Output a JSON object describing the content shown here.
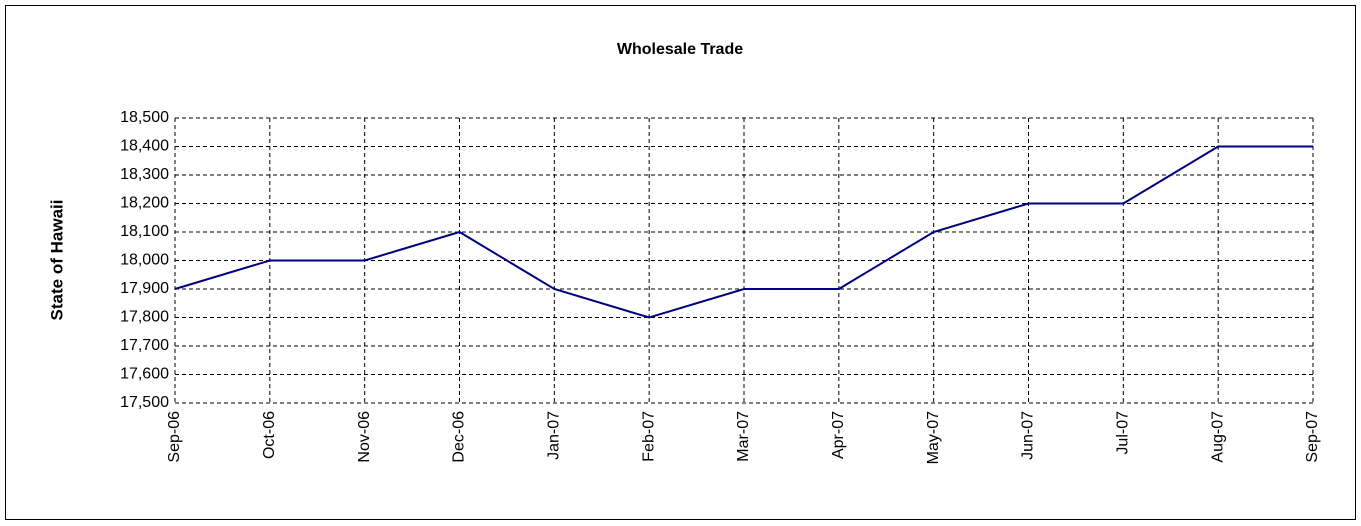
{
  "chart_data": {
    "type": "line",
    "title": "Wholesale Trade",
    "y_label": "State of Hawaii",
    "categories": [
      "Sep-06",
      "Oct-06",
      "Nov-06",
      "Dec-06",
      "Jan-07",
      "Feb-07",
      "Mar-07",
      "Apr-07",
      "May-07",
      "Jun-07",
      "Jul-07",
      "Aug-07",
      "Sep-07"
    ],
    "series": [
      {
        "name": "State of Hawaii",
        "color": "#000080",
        "values": [
          17900,
          18000,
          18000,
          18100,
          17900,
          17800,
          17900,
          17900,
          18100,
          18200,
          18200,
          18400,
          18400
        ]
      }
    ],
    "ylim": [
      17500,
      18500
    ],
    "yticks": [
      {
        "value": 17500,
        "label": "17,500"
      },
      {
        "value": 17600,
        "label": "17,600"
      },
      {
        "value": 17700,
        "label": "17,700"
      },
      {
        "value": 17800,
        "label": "17,800"
      },
      {
        "value": 17900,
        "label": "17,900"
      },
      {
        "value": 18000,
        "label": "18,000"
      },
      {
        "value": 18100,
        "label": "18,100"
      },
      {
        "value": 18200,
        "label": "18,200"
      },
      {
        "value": 18300,
        "label": "18,300"
      },
      {
        "value": 18400,
        "label": "18,400"
      },
      {
        "value": 18500,
        "label": "18,500"
      }
    ],
    "grid": true
  }
}
